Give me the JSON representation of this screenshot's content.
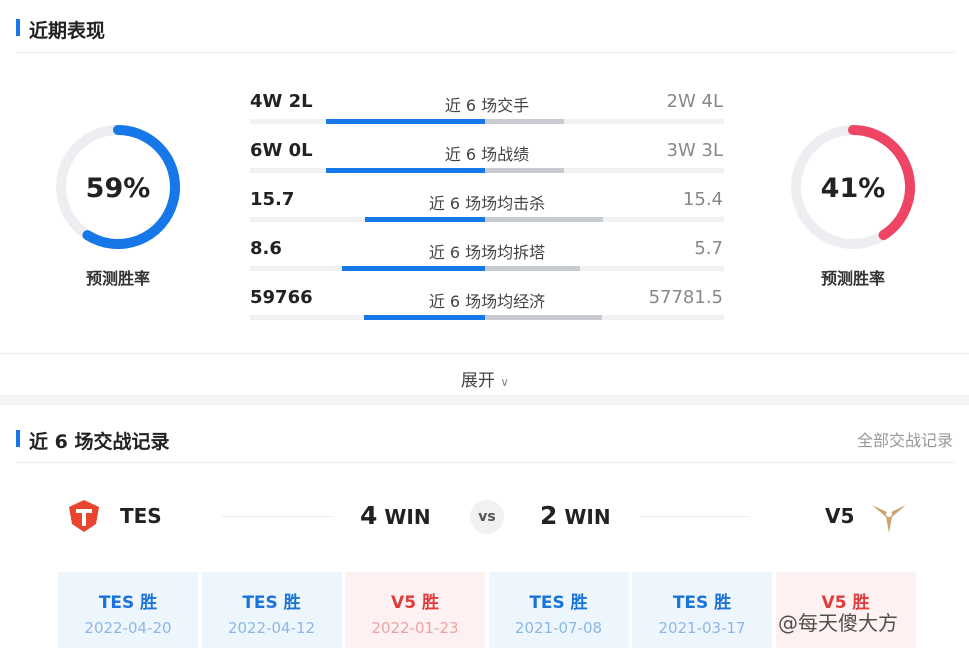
{
  "header": {
    "title": "近期表现"
  },
  "prediction": {
    "left": {
      "rate": {
        "value": 59,
        "label": "59%"
      },
      "label": "预测胜率",
      "color": "#1677e8"
    },
    "right": {
      "rate": {
        "value": 41,
        "label": "41%"
      },
      "label": "预测胜率",
      "color": "#ef4565"
    }
  },
  "stats": [
    {
      "left": "4W 2L",
      "label": "近 6 场交手",
      "right": "2W 4L"
    },
    {
      "left": "6W 0L",
      "label": "近 6 场战绩",
      "right": "3W 3L"
    },
    {
      "left": 15.7,
      "label": "近 6 场场均击杀",
      "right": 15.4
    },
    {
      "left": 8.6,
      "label": "近 6 场场均拆塔",
      "right": 5.7
    },
    {
      "left": 59766,
      "label": "近 6 场场均经济",
      "right": 57781.5
    }
  ],
  "expand": "展开",
  "record": {
    "title": "近 6 场交战记录",
    "link": "全部交战记录",
    "team_left": "TES",
    "team_right": "V5",
    "left_wins": 4,
    "right_wins": 2,
    "win": "WIN",
    "vs": "vs",
    "matches": [
      {
        "result": "TES 胜",
        "date": "2022-04-20",
        "color": "blue"
      },
      {
        "result": "TES 胜",
        "date": "2022-04-12",
        "color": "blue"
      },
      {
        "result": "V5 胜",
        "date": "2022-01-23",
        "color": "red"
      },
      {
        "result": "TES 胜",
        "date": "2021-07-08",
        "color": "blue"
      },
      {
        "result": "TES 胜",
        "date": "2021-03-17",
        "color": "blue"
      },
      {
        "result": "V5 胜",
        "date": "",
        "color": "red"
      }
    ]
  },
  "watermark": "@每天傻大方"
}
